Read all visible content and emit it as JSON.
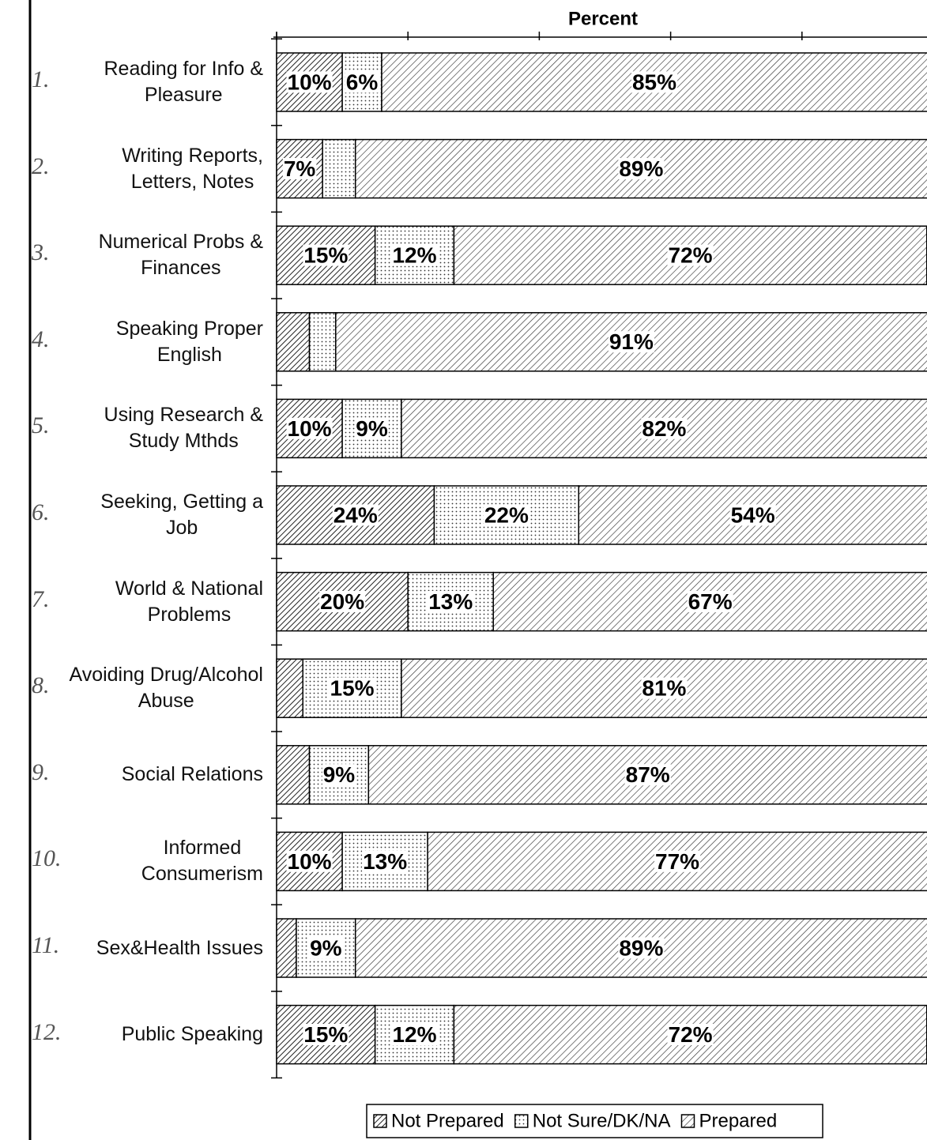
{
  "chart_data": {
    "type": "stacked-bar-horizontal",
    "x_label": "Percent",
    "categories": [
      "Reading for Info &\nPleasure",
      "Writing Reports,\nLetters, Notes",
      "Numerical Probs &\nFinances",
      "Speaking Proper\nEnglish",
      "Using Research &\nStudy Mthds",
      "Seeking, Getting a\nJob",
      "World & National\nProblems",
      "Avoiding Drug/Alcohol\nAbuse",
      "Social Relations",
      "Informed\nConsumerism",
      "Sex&Health Issues",
      "Public Speaking"
    ],
    "item_numbers": [
      "1.",
      "2.",
      "3.",
      "4.",
      "5.",
      "6.",
      "7.",
      "8.",
      "9.",
      "10.",
      "11.",
      "12."
    ],
    "series": [
      {
        "name": "Not Prepared",
        "color": "#000000",
        "pattern": "hatch-dense",
        "values": [
          10,
          7,
          15,
          5,
          10,
          24,
          20,
          4,
          5,
          10,
          3,
          15
        ],
        "value_labels": [
          "10%",
          "7%",
          "15%",
          null,
          "10%",
          "24%",
          "20%",
          null,
          null,
          "10%",
          null,
          "15%"
        ]
      },
      {
        "name": "Not Sure/DK/NA",
        "color": "#000000",
        "pattern": "dots",
        "values": [
          6,
          5,
          12,
          4,
          9,
          22,
          13,
          15,
          9,
          13,
          9,
          12
        ],
        "value_labels": [
          "6%",
          null,
          "12%",
          null,
          "9%",
          "22%",
          "13%",
          "15%",
          "9%",
          "13%",
          "9%",
          "12%"
        ]
      },
      {
        "name": "Prepared",
        "color": "#000000",
        "pattern": "hatch",
        "values": [
          85,
          89,
          72,
          91,
          82,
          54,
          67,
          81,
          87,
          77,
          89,
          72
        ],
        "value_labels": [
          "85%",
          "89%",
          "72%",
          "91%",
          "82%",
          "54%",
          "67%",
          "81%",
          "87%",
          "77%",
          "89%",
          "72%"
        ]
      }
    ],
    "xlim": [
      0,
      100
    ],
    "xticks": [
      0,
      20,
      40,
      60,
      80,
      100
    ],
    "legend": "bottom"
  }
}
